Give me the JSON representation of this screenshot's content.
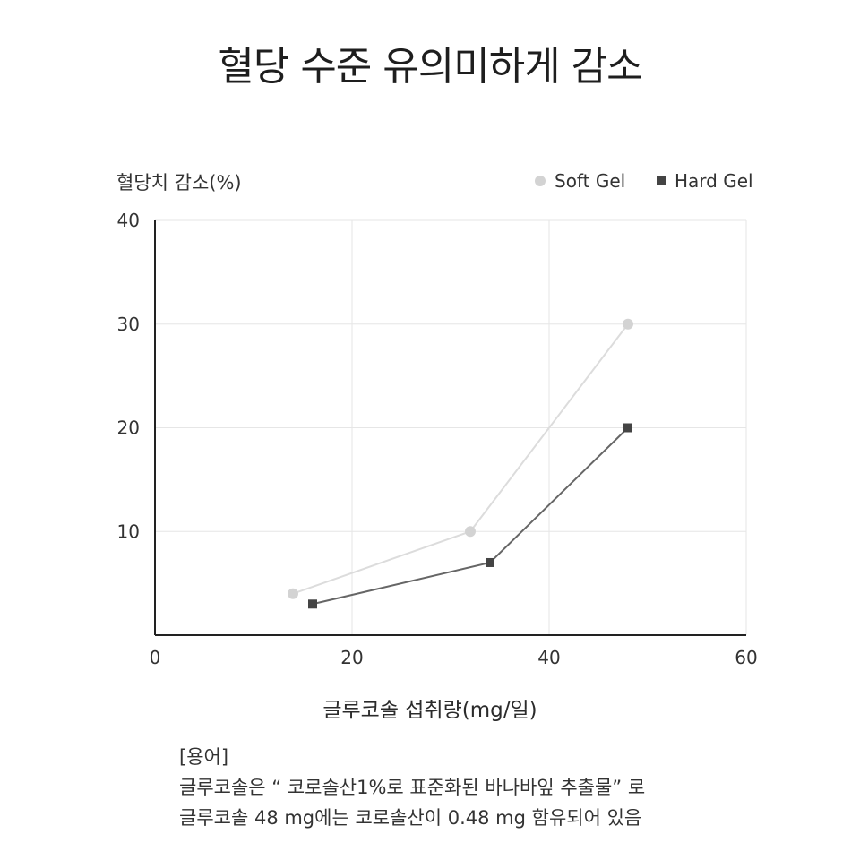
{
  "title": "혈당 수준 유의미하게 감소",
  "chart_data": {
    "type": "line",
    "ylabel": "혈당치 감소(%)",
    "xlabel": "글루코솔 섭취량(mg/일)",
    "xlim": [
      0,
      60
    ],
    "ylim": [
      0,
      40
    ],
    "x_ticks": [
      "0",
      "20",
      "40",
      "60"
    ],
    "y_ticks": [
      "10",
      "20",
      "30",
      "40"
    ],
    "grid": true,
    "legend": "top-right",
    "series": [
      {
        "name": "Soft Gel",
        "marker": "circle",
        "color": "#d3d3d3",
        "x": [
          14,
          32,
          48
        ],
        "y": [
          4,
          10,
          30
        ]
      },
      {
        "name": "Hard Gel",
        "marker": "square",
        "color": "#444444",
        "x": [
          16,
          34,
          48
        ],
        "y": [
          3,
          7,
          20
        ]
      }
    ]
  },
  "notes": {
    "heading": "[용어]",
    "line1": "글루코솔은 “ 코로솔산1%로 표준화된 바나바잎 추출물” 로",
    "line2": "글루코솔 48 mg에는 코로솔산이 0.48 mg 함유되어 있음"
  }
}
